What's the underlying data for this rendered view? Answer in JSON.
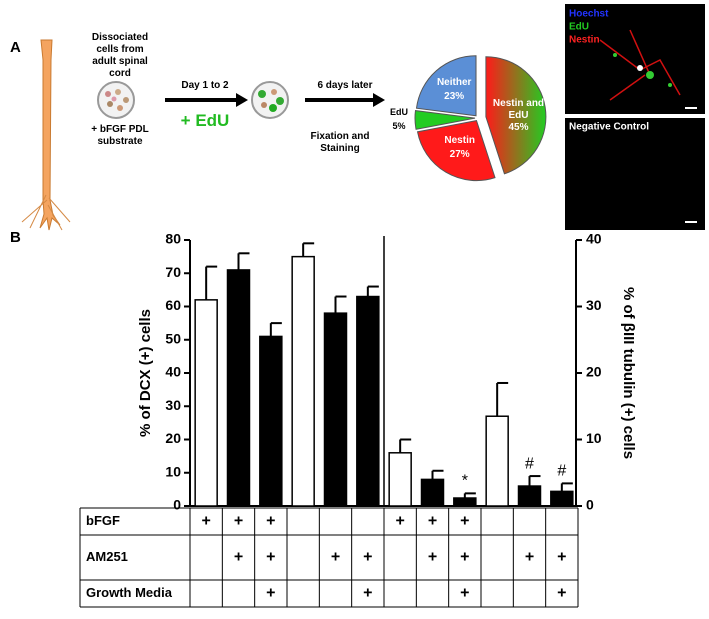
{
  "panel_labels": [
    "A",
    "B"
  ],
  "diagram": {
    "step1": "Dissociated cells from adult spinal cord",
    "step1_media": "+ bFGF PDL substrate",
    "step2": "Day 1 to 2",
    "step2_treatment": "+ EdU",
    "step3": "6 days later",
    "step3_action": "Fixation and Staining"
  },
  "micrographs": {
    "top": [
      "Hoechst",
      "EdU",
      "Nestin"
    ],
    "bottom": "Negative Control"
  },
  "table": {
    "rows": [
      {
        "label": "bFGF",
        "cells": [
          "+",
          "+",
          "+",
          null,
          null,
          null,
          "+",
          "+",
          "+",
          null,
          null,
          null
        ]
      },
      {
        "label": "AM251",
        "cells": [
          null,
          "+",
          "+",
          null,
          "+",
          "+",
          null,
          "+",
          "+",
          null,
          "+",
          "+"
        ]
      },
      {
        "label": "Growth Media",
        "cells": [
          null,
          null,
          "+",
          null,
          null,
          "+",
          null,
          null,
          "+",
          null,
          null,
          "+"
        ]
      }
    ]
  },
  "chart_data": [
    {
      "type": "pie",
      "labels": [
        "Nestin and EdU",
        "Nestin",
        "EdU",
        "Neither"
      ],
      "values": [
        45,
        27,
        5,
        23
      ],
      "value_labels": [
        "45%",
        "27%",
        "5%",
        "23%"
      ],
      "colors": [
        [
          "#ff1a1a",
          "#22cc22"
        ],
        "#ff1a1a",
        "#22cc22",
        "#5b8fd6"
      ]
    },
    {
      "type": "bar",
      "ylabel": "% of DCX (+) cells",
      "y2label": "% of βIII tubulin (+) cells",
      "ylim": [
        0,
        80
      ],
      "yticks": [
        0,
        10,
        20,
        30,
        40,
        50,
        60,
        70,
        80
      ],
      "y2lim": [
        0,
        40
      ],
      "y2ticks": [
        0,
        10,
        20,
        30,
        40
      ],
      "colors": [
        "#ffffff",
        "#000000",
        "#000000",
        "#ffffff",
        "#000000",
        "#000000",
        "#ffffff",
        "#000000",
        "#000000",
        "#ffffff",
        "#000000",
        "#000000"
      ],
      "series": [
        {
          "axis": "y",
          "values": [
            62,
            71,
            51,
            75,
            58,
            63,
            null,
            null,
            null,
            null,
            null,
            null
          ],
          "errors": [
            10,
            5,
            4,
            4,
            5,
            3,
            null,
            null,
            null,
            null,
            null,
            null
          ]
        },
        {
          "axis": "y2",
          "values": [
            null,
            null,
            null,
            null,
            null,
            null,
            8,
            4,
            1.2,
            13.5,
            3,
            2.2
          ],
          "errors": [
            null,
            null,
            null,
            null,
            null,
            null,
            2,
            1.3,
            0.7,
            5,
            1.5,
            1.2
          ]
        }
      ],
      "annotations": [
        null,
        null,
        null,
        null,
        null,
        null,
        null,
        null,
        "*",
        null,
        "#",
        "#"
      ]
    }
  ]
}
